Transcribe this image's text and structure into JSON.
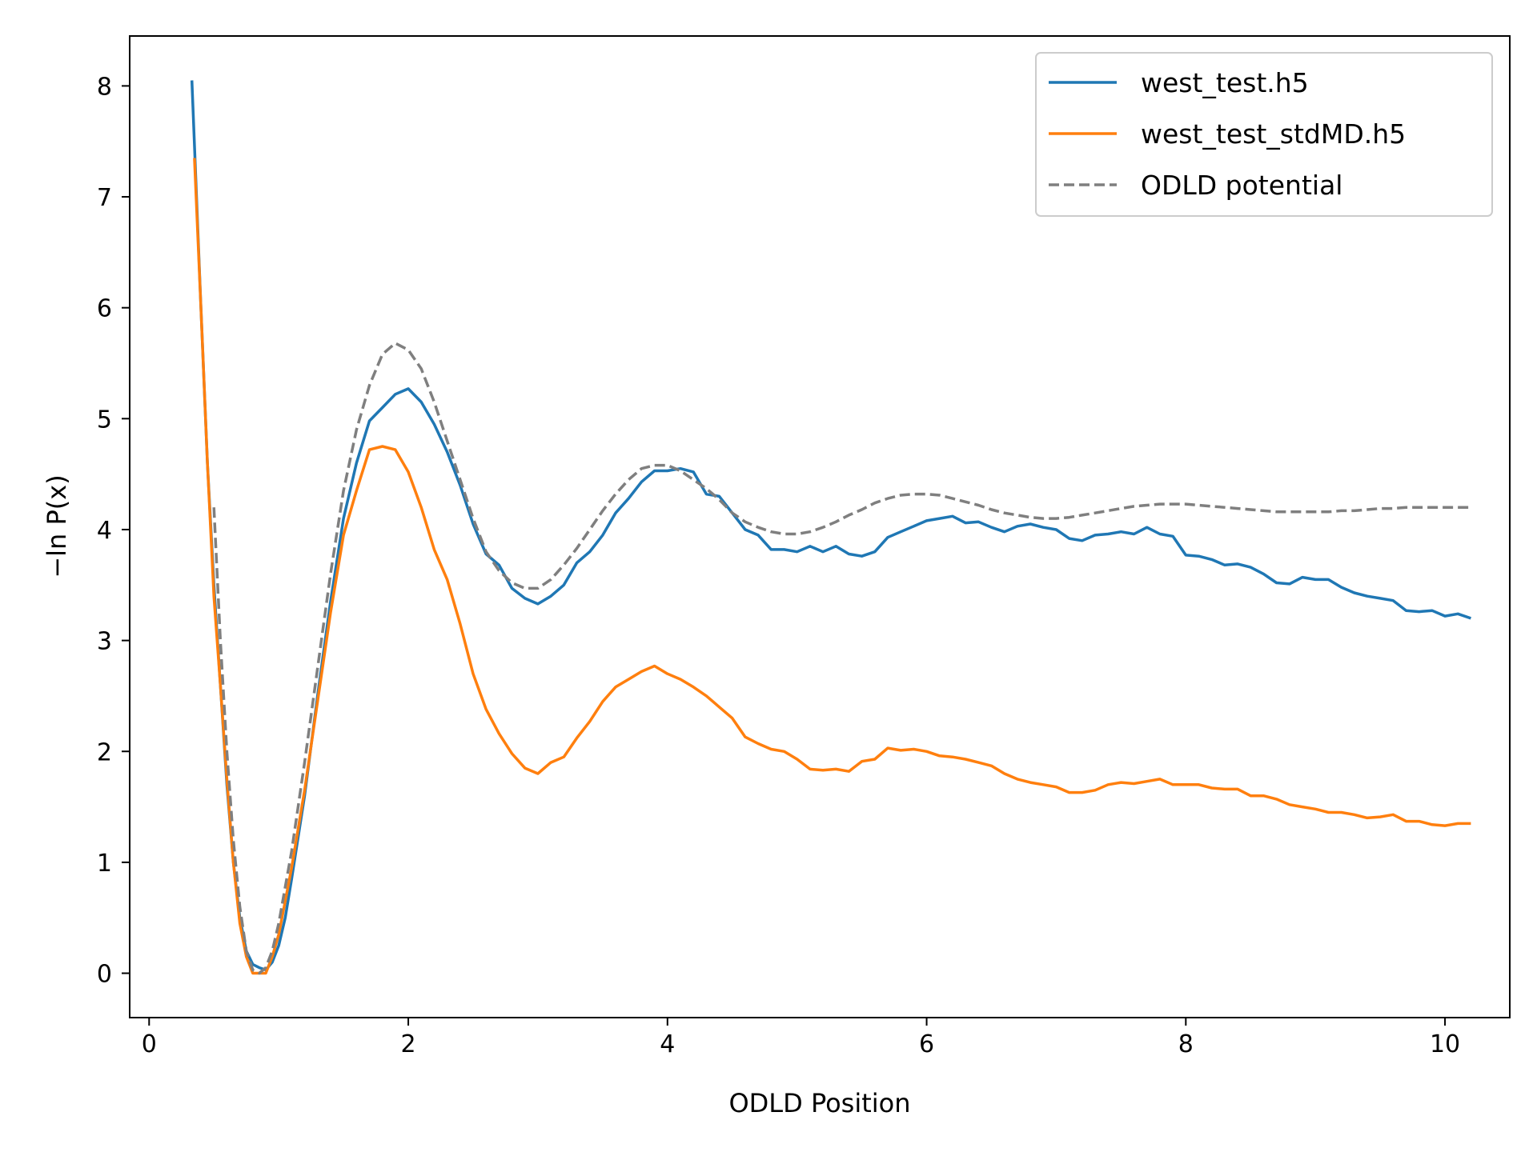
{
  "chart_data": {
    "type": "line",
    "xlabel": "ODLD Position",
    "ylabel": "−ln P(x)",
    "xlim": [
      -0.15,
      10.5
    ],
    "ylim": [
      -0.4,
      8.45
    ],
    "xticks": [
      0,
      2,
      4,
      6,
      8,
      10
    ],
    "yticks": [
      0,
      1,
      2,
      3,
      4,
      5,
      6,
      7,
      8
    ],
    "grid": false,
    "legend_position": "top-right",
    "series": [
      {
        "name": "west_test.h5",
        "color": "#1f77b4",
        "style": "solid",
        "points": [
          [
            0.33,
            8.05
          ],
          [
            0.4,
            6.0
          ],
          [
            0.45,
            4.6
          ],
          [
            0.5,
            3.5
          ],
          [
            0.55,
            2.6
          ],
          [
            0.6,
            1.7
          ],
          [
            0.65,
            1.0
          ],
          [
            0.7,
            0.5
          ],
          [
            0.75,
            0.2
          ],
          [
            0.8,
            0.08
          ],
          [
            0.85,
            0.05
          ],
          [
            0.9,
            0.03
          ],
          [
            0.95,
            0.1
          ],
          [
            1.0,
            0.25
          ],
          [
            1.05,
            0.5
          ],
          [
            1.1,
            0.85
          ],
          [
            1.2,
            1.6
          ],
          [
            1.3,
            2.5
          ],
          [
            1.4,
            3.35
          ],
          [
            1.5,
            4.1
          ],
          [
            1.6,
            4.6
          ],
          [
            1.7,
            4.98
          ],
          [
            1.8,
            5.1
          ],
          [
            1.9,
            5.22
          ],
          [
            2.0,
            5.27
          ],
          [
            2.1,
            5.15
          ],
          [
            2.2,
            4.95
          ],
          [
            2.3,
            4.7
          ],
          [
            2.4,
            4.4
          ],
          [
            2.5,
            4.05
          ],
          [
            2.6,
            3.78
          ],
          [
            2.7,
            3.68
          ],
          [
            2.8,
            3.47
          ],
          [
            2.9,
            3.38
          ],
          [
            3.0,
            3.33
          ],
          [
            3.1,
            3.4
          ],
          [
            3.2,
            3.5
          ],
          [
            3.3,
            3.7
          ],
          [
            3.4,
            3.8
          ],
          [
            3.5,
            3.95
          ],
          [
            3.6,
            4.15
          ],
          [
            3.7,
            4.28
          ],
          [
            3.8,
            4.43
          ],
          [
            3.9,
            4.53
          ],
          [
            4.0,
            4.53
          ],
          [
            4.1,
            4.55
          ],
          [
            4.2,
            4.52
          ],
          [
            4.3,
            4.32
          ],
          [
            4.4,
            4.3
          ],
          [
            4.5,
            4.15
          ],
          [
            4.6,
            4.0
          ],
          [
            4.7,
            3.95
          ],
          [
            4.8,
            3.82
          ],
          [
            4.9,
            3.82
          ],
          [
            5.0,
            3.8
          ],
          [
            5.1,
            3.85
          ],
          [
            5.2,
            3.8
          ],
          [
            5.3,
            3.85
          ],
          [
            5.4,
            3.78
          ],
          [
            5.5,
            3.76
          ],
          [
            5.6,
            3.8
          ],
          [
            5.7,
            3.93
          ],
          [
            5.8,
            3.98
          ],
          [
            5.9,
            4.03
          ],
          [
            6.0,
            4.08
          ],
          [
            6.1,
            4.1
          ],
          [
            6.2,
            4.12
          ],
          [
            6.3,
            4.06
          ],
          [
            6.4,
            4.07
          ],
          [
            6.5,
            4.02
          ],
          [
            6.6,
            3.98
          ],
          [
            6.7,
            4.03
          ],
          [
            6.8,
            4.05
          ],
          [
            6.9,
            4.02
          ],
          [
            7.0,
            4.0
          ],
          [
            7.1,
            3.92
          ],
          [
            7.2,
            3.9
          ],
          [
            7.3,
            3.95
          ],
          [
            7.4,
            3.96
          ],
          [
            7.5,
            3.98
          ],
          [
            7.6,
            3.96
          ],
          [
            7.7,
            4.02
          ],
          [
            7.8,
            3.96
          ],
          [
            7.9,
            3.94
          ],
          [
            8.0,
            3.77
          ],
          [
            8.1,
            3.76
          ],
          [
            8.2,
            3.73
          ],
          [
            8.3,
            3.68
          ],
          [
            8.4,
            3.69
          ],
          [
            8.5,
            3.66
          ],
          [
            8.6,
            3.6
          ],
          [
            8.7,
            3.52
          ],
          [
            8.8,
            3.51
          ],
          [
            8.9,
            3.57
          ],
          [
            9.0,
            3.55
          ],
          [
            9.1,
            3.55
          ],
          [
            9.2,
            3.48
          ],
          [
            9.3,
            3.43
          ],
          [
            9.4,
            3.4
          ],
          [
            9.5,
            3.38
          ],
          [
            9.6,
            3.36
          ],
          [
            9.7,
            3.27
          ],
          [
            9.8,
            3.26
          ],
          [
            9.9,
            3.27
          ],
          [
            10.0,
            3.22
          ],
          [
            10.1,
            3.24
          ],
          [
            10.2,
            3.2
          ]
        ]
      },
      {
        "name": "west_test_stdMD.h5",
        "color": "#ff7f0e",
        "style": "solid",
        "points": [
          [
            0.35,
            7.35
          ],
          [
            0.4,
            6.0
          ],
          [
            0.45,
            4.6
          ],
          [
            0.5,
            3.4
          ],
          [
            0.55,
            2.6
          ],
          [
            0.6,
            1.75
          ],
          [
            0.65,
            1.0
          ],
          [
            0.7,
            0.45
          ],
          [
            0.75,
            0.15
          ],
          [
            0.8,
            0.0
          ],
          [
            0.85,
            0.0
          ],
          [
            0.9,
            0.0
          ],
          [
            0.95,
            0.15
          ],
          [
            1.0,
            0.35
          ],
          [
            1.05,
            0.65
          ],
          [
            1.1,
            0.95
          ],
          [
            1.2,
            1.65
          ],
          [
            1.3,
            2.45
          ],
          [
            1.4,
            3.25
          ],
          [
            1.5,
            3.95
          ],
          [
            1.6,
            4.35
          ],
          [
            1.7,
            4.72
          ],
          [
            1.8,
            4.75
          ],
          [
            1.9,
            4.72
          ],
          [
            2.0,
            4.52
          ],
          [
            2.1,
            4.2
          ],
          [
            2.2,
            3.82
          ],
          [
            2.3,
            3.55
          ],
          [
            2.4,
            3.15
          ],
          [
            2.5,
            2.7
          ],
          [
            2.6,
            2.38
          ],
          [
            2.7,
            2.16
          ],
          [
            2.8,
            1.98
          ],
          [
            2.9,
            1.85
          ],
          [
            3.0,
            1.8
          ],
          [
            3.1,
            1.9
          ],
          [
            3.2,
            1.95
          ],
          [
            3.3,
            2.12
          ],
          [
            3.4,
            2.27
          ],
          [
            3.5,
            2.45
          ],
          [
            3.6,
            2.58
          ],
          [
            3.7,
            2.65
          ],
          [
            3.8,
            2.72
          ],
          [
            3.9,
            2.77
          ],
          [
            4.0,
            2.7
          ],
          [
            4.1,
            2.65
          ],
          [
            4.2,
            2.58
          ],
          [
            4.3,
            2.5
          ],
          [
            4.4,
            2.4
          ],
          [
            4.5,
            2.3
          ],
          [
            4.6,
            2.13
          ],
          [
            4.7,
            2.07
          ],
          [
            4.8,
            2.02
          ],
          [
            4.9,
            2.0
          ],
          [
            5.0,
            1.93
          ],
          [
            5.1,
            1.84
          ],
          [
            5.2,
            1.83
          ],
          [
            5.3,
            1.84
          ],
          [
            5.4,
            1.82
          ],
          [
            5.5,
            1.91
          ],
          [
            5.6,
            1.93
          ],
          [
            5.7,
            2.03
          ],
          [
            5.8,
            2.01
          ],
          [
            5.9,
            2.02
          ],
          [
            6.0,
            2.0
          ],
          [
            6.1,
            1.96
          ],
          [
            6.2,
            1.95
          ],
          [
            6.3,
            1.93
          ],
          [
            6.4,
            1.9
          ],
          [
            6.5,
            1.87
          ],
          [
            6.6,
            1.8
          ],
          [
            6.7,
            1.75
          ],
          [
            6.8,
            1.72
          ],
          [
            6.9,
            1.7
          ],
          [
            7.0,
            1.68
          ],
          [
            7.1,
            1.63
          ],
          [
            7.2,
            1.63
          ],
          [
            7.3,
            1.65
          ],
          [
            7.4,
            1.7
          ],
          [
            7.5,
            1.72
          ],
          [
            7.6,
            1.71
          ],
          [
            7.7,
            1.73
          ],
          [
            7.8,
            1.75
          ],
          [
            7.9,
            1.7
          ],
          [
            8.0,
            1.7
          ],
          [
            8.1,
            1.7
          ],
          [
            8.2,
            1.67
          ],
          [
            8.3,
            1.66
          ],
          [
            8.4,
            1.66
          ],
          [
            8.5,
            1.6
          ],
          [
            8.6,
            1.6
          ],
          [
            8.7,
            1.57
          ],
          [
            8.8,
            1.52
          ],
          [
            8.9,
            1.5
          ],
          [
            9.0,
            1.48
          ],
          [
            9.1,
            1.45
          ],
          [
            9.2,
            1.45
          ],
          [
            9.3,
            1.43
          ],
          [
            9.4,
            1.4
          ],
          [
            9.5,
            1.41
          ],
          [
            9.6,
            1.43
          ],
          [
            9.7,
            1.37
          ],
          [
            9.8,
            1.37
          ],
          [
            9.9,
            1.34
          ],
          [
            10.0,
            1.33
          ],
          [
            10.1,
            1.35
          ],
          [
            10.2,
            1.35
          ]
        ]
      },
      {
        "name": "ODLD potential",
        "color": "#7f7f7f",
        "style": "dashed",
        "points": [
          [
            0.5,
            4.2
          ],
          [
            0.55,
            3.0
          ],
          [
            0.6,
            2.0
          ],
          [
            0.65,
            1.2
          ],
          [
            0.7,
            0.6
          ],
          [
            0.75,
            0.2
          ],
          [
            0.8,
            0.03
          ],
          [
            0.85,
            0.0
          ],
          [
            0.9,
            0.05
          ],
          [
            0.95,
            0.2
          ],
          [
            1.0,
            0.45
          ],
          [
            1.1,
            1.1
          ],
          [
            1.2,
            1.9
          ],
          [
            1.3,
            2.75
          ],
          [
            1.4,
            3.6
          ],
          [
            1.5,
            4.35
          ],
          [
            1.6,
            4.9
          ],
          [
            1.7,
            5.3
          ],
          [
            1.8,
            5.58
          ],
          [
            1.9,
            5.68
          ],
          [
            2.0,
            5.62
          ],
          [
            2.1,
            5.45
          ],
          [
            2.2,
            5.15
          ],
          [
            2.3,
            4.8
          ],
          [
            2.4,
            4.45
          ],
          [
            2.5,
            4.1
          ],
          [
            2.6,
            3.8
          ],
          [
            2.7,
            3.63
          ],
          [
            2.8,
            3.52
          ],
          [
            2.9,
            3.47
          ],
          [
            3.0,
            3.47
          ],
          [
            3.1,
            3.55
          ],
          [
            3.2,
            3.68
          ],
          [
            3.3,
            3.83
          ],
          [
            3.4,
            4.0
          ],
          [
            3.5,
            4.17
          ],
          [
            3.6,
            4.32
          ],
          [
            3.7,
            4.45
          ],
          [
            3.8,
            4.55
          ],
          [
            3.9,
            4.58
          ],
          [
            4.0,
            4.58
          ],
          [
            4.1,
            4.53
          ],
          [
            4.2,
            4.45
          ],
          [
            4.3,
            4.37
          ],
          [
            4.4,
            4.27
          ],
          [
            4.5,
            4.15
          ],
          [
            4.6,
            4.07
          ],
          [
            4.7,
            4.02
          ],
          [
            4.8,
            3.98
          ],
          [
            4.9,
            3.96
          ],
          [
            5.0,
            3.96
          ],
          [
            5.1,
            3.98
          ],
          [
            5.2,
            4.02
          ],
          [
            5.3,
            4.07
          ],
          [
            5.4,
            4.13
          ],
          [
            5.5,
            4.18
          ],
          [
            5.6,
            4.24
          ],
          [
            5.7,
            4.28
          ],
          [
            5.8,
            4.31
          ],
          [
            5.9,
            4.32
          ],
          [
            6.0,
            4.32
          ],
          [
            6.1,
            4.31
          ],
          [
            6.2,
            4.28
          ],
          [
            6.3,
            4.25
          ],
          [
            6.4,
            4.22
          ],
          [
            6.5,
            4.18
          ],
          [
            6.6,
            4.15
          ],
          [
            6.7,
            4.13
          ],
          [
            6.8,
            4.11
          ],
          [
            6.9,
            4.1
          ],
          [
            7.0,
            4.1
          ],
          [
            7.1,
            4.11
          ],
          [
            7.2,
            4.13
          ],
          [
            7.3,
            4.15
          ],
          [
            7.4,
            4.17
          ],
          [
            7.5,
            4.19
          ],
          [
            7.6,
            4.21
          ],
          [
            7.7,
            4.22
          ],
          [
            7.8,
            4.23
          ],
          [
            7.9,
            4.23
          ],
          [
            8.0,
            4.23
          ],
          [
            8.1,
            4.22
          ],
          [
            8.2,
            4.21
          ],
          [
            8.3,
            4.2
          ],
          [
            8.4,
            4.19
          ],
          [
            8.5,
            4.18
          ],
          [
            8.6,
            4.17
          ],
          [
            8.7,
            4.16
          ],
          [
            8.8,
            4.16
          ],
          [
            8.9,
            4.16
          ],
          [
            9.0,
            4.16
          ],
          [
            9.1,
            4.16
          ],
          [
            9.2,
            4.17
          ],
          [
            9.3,
            4.17
          ],
          [
            9.4,
            4.18
          ],
          [
            9.5,
            4.19
          ],
          [
            9.6,
            4.19
          ],
          [
            9.7,
            4.2
          ],
          [
            9.8,
            4.2
          ],
          [
            9.9,
            4.2
          ],
          [
            10.0,
            4.2
          ],
          [
            10.1,
            4.2
          ],
          [
            10.2,
            4.2
          ]
        ]
      }
    ]
  }
}
